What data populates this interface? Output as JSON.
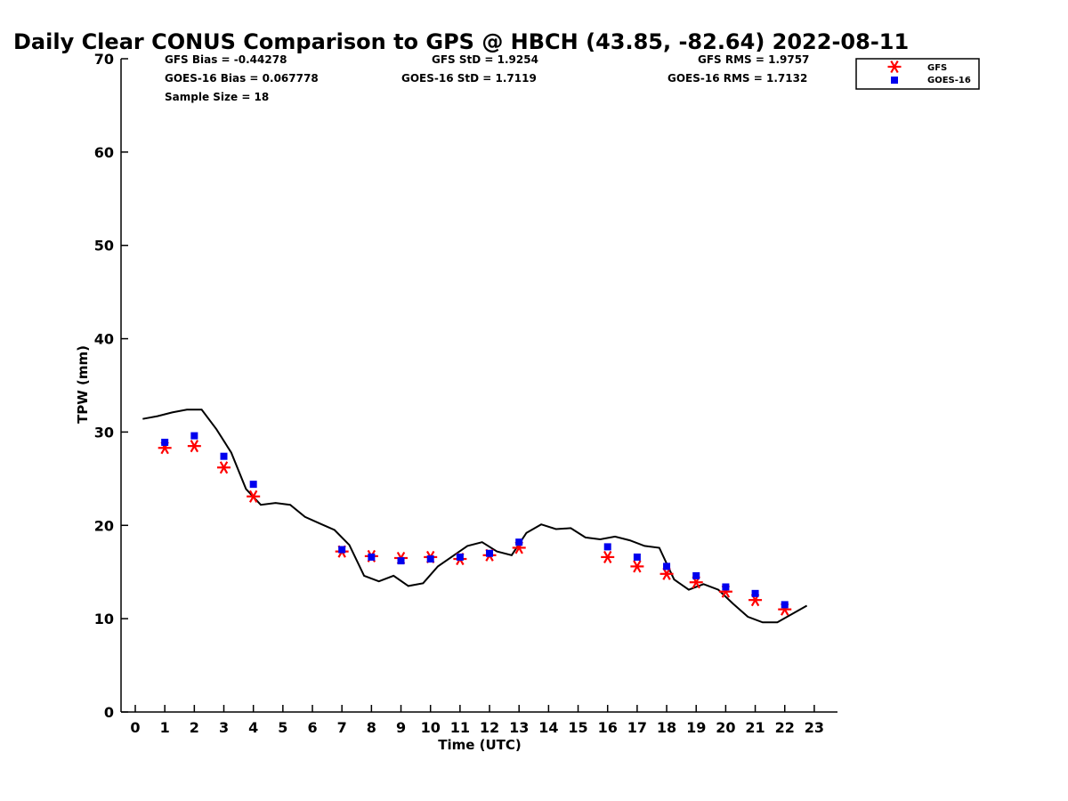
{
  "chart_data": {
    "type": "scatter",
    "title": "Daily Clear CONUS Comparison to GPS @ HBCH (43.85, -82.64) 2022-08-11",
    "xlabel": "Time (UTC)",
    "ylabel": "TPW (mm)",
    "xlim": [
      -0.5,
      23.7
    ],
    "ylim": [
      0,
      70
    ],
    "x_ticks": [
      0,
      1,
      2,
      3,
      4,
      5,
      6,
      7,
      8,
      9,
      10,
      11,
      12,
      13,
      14,
      15,
      16,
      17,
      18,
      19,
      20,
      21,
      22,
      23
    ],
    "y_ticks": [
      0,
      10,
      20,
      30,
      40,
      50,
      60,
      70
    ],
    "grid": false,
    "legend_position": "top-right",
    "stats": {
      "gfs_bias": "GFS Bias = -0.44278",
      "gfs_std": "GFS StD = 1.9254",
      "gfs_rms": "GFS RMS = 1.9757",
      "goes_bias": "GOES-16 Bias = 0.067778",
      "goes_std": "GOES-16 StD = 1.7119",
      "goes_rms": "GOES-16 RMS = 1.7132",
      "sample_size": "Sample Size = 18"
    },
    "series": [
      {
        "name": "GFS",
        "marker": "asterisk",
        "color": "#ff0000",
        "x": [
          1,
          2,
          3,
          4,
          7,
          8,
          9,
          10,
          11,
          12,
          13,
          16,
          17,
          18,
          19,
          20,
          21,
          22
        ],
        "y": [
          28.3,
          28.5,
          26.2,
          23.1,
          17.2,
          16.7,
          16.5,
          16.6,
          16.4,
          16.8,
          17.6,
          16.6,
          15.6,
          14.8,
          13.9,
          12.9,
          12.0,
          11.0
        ]
      },
      {
        "name": "GOES-16",
        "marker": "square",
        "color": "#0000ee",
        "x": [
          1,
          2,
          3,
          4,
          7,
          8,
          9,
          10,
          11,
          12,
          13,
          16,
          17,
          18,
          19,
          20,
          21,
          22
        ],
        "y": [
          28.9,
          29.6,
          27.4,
          24.4,
          17.4,
          16.6,
          16.2,
          16.4,
          16.6,
          17.0,
          18.2,
          17.7,
          16.6,
          15.6,
          14.6,
          13.4,
          12.7,
          11.5
        ]
      },
      {
        "marker": "line",
        "color": "#000000",
        "x": [
          0.25,
          0.75,
          1.25,
          1.75,
          2.25,
          2.75,
          3.25,
          3.75,
          4.25,
          4.75,
          5.25,
          5.75,
          6.25,
          6.75,
          7.25,
          7.75,
          8.25,
          8.75,
          9.25,
          9.75,
          10.25,
          10.75,
          11.25,
          11.75,
          12.25,
          12.75,
          13.25,
          13.75,
          14.25,
          14.75,
          15.25,
          15.75,
          16.25,
          16.75,
          17.25,
          17.75,
          18.25,
          18.75,
          19.25,
          19.75,
          20.25,
          20.75,
          21.25,
          21.75,
          22.25,
          22.75
        ],
        "y": [
          31.4,
          31.7,
          32.1,
          32.4,
          32.4,
          30.3,
          27.8,
          23.9,
          22.2,
          22.4,
          22.2,
          20.9,
          20.2,
          19.5,
          17.9,
          14.6,
          14.0,
          14.6,
          13.5,
          13.8,
          15.6,
          16.7,
          17.8,
          18.2,
          17.2,
          16.8,
          19.2,
          20.1,
          19.6,
          19.7,
          18.7,
          18.5,
          18.8,
          18.4,
          17.8,
          17.6,
          14.2,
          13.1,
          13.7,
          13.1,
          11.6,
          10.2,
          9.6,
          9.6,
          10.5,
          11.4
        ]
      }
    ]
  }
}
